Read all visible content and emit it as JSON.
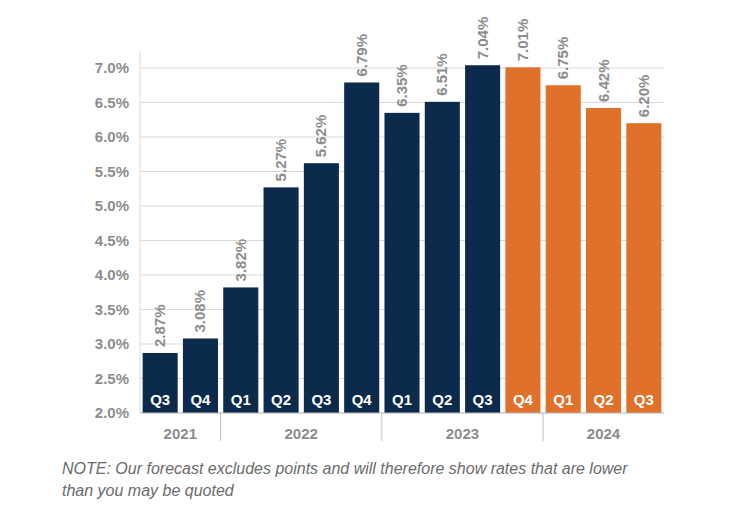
{
  "chart_data": {
    "type": "bar",
    "categories": [
      "Q3",
      "Q4",
      "Q1",
      "Q2",
      "Q3",
      "Q4",
      "Q1",
      "Q2",
      "Q3",
      "Q4",
      "Q1",
      "Q2",
      "Q3"
    ],
    "x_groups": [
      "2021",
      "2021",
      "2022",
      "2022",
      "2022",
      "2022",
      "2023",
      "2023",
      "2023",
      "2023",
      "2024",
      "2024",
      "2024"
    ],
    "values": [
      2.87,
      3.08,
      3.82,
      5.27,
      5.62,
      6.79,
      6.35,
      6.51,
      7.04,
      7.01,
      6.75,
      6.42,
      6.2
    ],
    "value_labels": [
      "2.87%",
      "3.08%",
      "3.82%",
      "5.27%",
      "5.62%",
      "6.79%",
      "6.35%",
      "6.51%",
      "7.04%",
      "7.01%",
      "6.75%",
      "6.42%",
      "6.20%"
    ],
    "colors": [
      "#0c2a4b",
      "#0c2a4b",
      "#0c2a4b",
      "#0c2a4b",
      "#0c2a4b",
      "#0c2a4b",
      "#0c2a4b",
      "#0c2a4b",
      "#0c2a4b",
      "#e0712a",
      "#e0712a",
      "#e0712a",
      "#e0712a"
    ],
    "ylim": [
      2.0,
      7.25
    ],
    "yticks": [
      {
        "value": 2.0,
        "label": "2.0%"
      },
      {
        "value": 2.5,
        "label": "2.5%"
      },
      {
        "value": 3.0,
        "label": "3.0%"
      },
      {
        "value": 3.5,
        "label": "3.5%"
      },
      {
        "value": 4.0,
        "label": "4.0%"
      },
      {
        "value": 4.5,
        "label": "4.5%"
      },
      {
        "value": 5.0,
        "label": "5.0%"
      },
      {
        "value": 5.5,
        "label": "5.5%"
      },
      {
        "value": 6.0,
        "label": "6.0%"
      },
      {
        "value": 6.5,
        "label": "6.5%"
      },
      {
        "value": 7.0,
        "label": "7.0%"
      }
    ],
    "grid": true,
    "data_labels": true,
    "note": "NOTE: Our forecast excludes points and will therefore show rates that are lower than you may be quoted"
  }
}
